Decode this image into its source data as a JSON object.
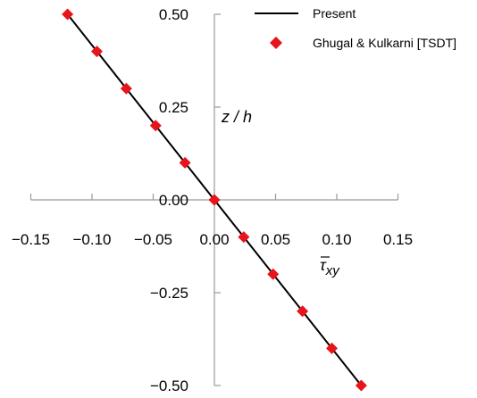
{
  "chart_data": {
    "type": "line",
    "title": "",
    "xlabel": "τxy",
    "ylabel": "z / h",
    "xlim": [
      -0.15,
      0.15
    ],
    "ylim": [
      -0.5,
      0.5
    ],
    "x_ticks": [
      "-0.15",
      "-0.10",
      "-0.05",
      "0.00",
      "0.05",
      "0.10",
      "0.15"
    ],
    "y_ticks": [
      "0.50",
      "0.25",
      "0.00",
      "-0.25",
      "-0.50"
    ],
    "grid": false,
    "legend_placement": "top-right",
    "series": [
      {
        "name": "Present",
        "style": "line",
        "color": "#000000",
        "x": [
          -0.12,
          0.12
        ],
        "y": [
          0.5,
          -0.5
        ]
      },
      {
        "name": "Ghugal & Kulkarni [TSDT]",
        "style": "marker",
        "marker": "diamond",
        "color": "#e8141b",
        "x": [
          -0.12,
          -0.096,
          -0.072,
          -0.048,
          -0.024,
          0.0,
          0.024,
          0.048,
          0.072,
          0.096,
          0.12
        ],
        "y": [
          0.5,
          0.4,
          0.3,
          0.2,
          0.1,
          0.0,
          -0.1,
          -0.2,
          -0.3,
          -0.4,
          -0.5
        ]
      }
    ]
  }
}
